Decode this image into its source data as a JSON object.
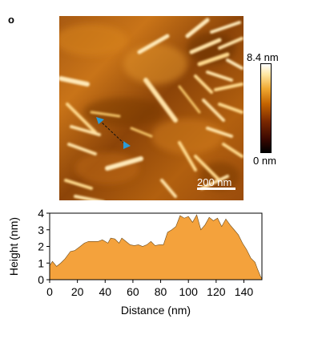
{
  "panel": {
    "label": "o"
  },
  "afm": {
    "scalebar_label": "200 nm",
    "colorbar_max": "8.4 nm",
    "colorbar_min": "0 nm",
    "colormap": [
      "#000000",
      "#3a0800",
      "#7a2800",
      "#c46400",
      "#f0a830",
      "#ffe6a0",
      "#ffffff"
    ],
    "marker_color": "#2b9bd6"
  },
  "chart_data": {
    "type": "area",
    "xlabel": "Distance (nm)",
    "ylabel": "Height (nm)",
    "xlim": [
      0,
      153
    ],
    "ylim": [
      0,
      4
    ],
    "xticks": [
      0,
      20,
      40,
      60,
      80,
      100,
      120,
      140
    ],
    "yticks": [
      0,
      1,
      2,
      3,
      4
    ],
    "fill_color": "#f4a23c",
    "grid": false,
    "x": [
      0,
      2,
      5,
      8,
      11,
      15,
      18,
      22,
      25,
      28,
      32,
      35,
      38,
      42,
      44,
      47,
      50,
      52,
      55,
      58,
      61,
      64,
      67,
      70,
      73,
      76,
      79,
      82,
      85,
      88,
      91,
      94,
      97,
      100,
      103,
      106,
      109,
      112,
      115,
      118,
      121,
      124,
      127,
      130,
      133,
      136,
      139,
      142,
      145,
      148,
      150,
      152,
      153
    ],
    "y": [
      0.85,
      1.1,
      0.8,
      1.0,
      1.25,
      1.7,
      1.75,
      2.0,
      2.2,
      2.3,
      2.3,
      2.3,
      2.4,
      2.2,
      2.5,
      2.45,
      2.2,
      2.5,
      2.3,
      2.1,
      2.05,
      2.1,
      2.0,
      2.1,
      2.3,
      2.05,
      2.1,
      2.1,
      2.85,
      3.0,
      3.2,
      3.85,
      3.7,
      3.8,
      3.45,
      3.9,
      3.0,
      3.3,
      3.75,
      3.55,
      3.7,
      3.2,
      3.65,
      3.3,
      3.0,
      2.7,
      2.2,
      1.8,
      1.3,
      1.05,
      0.6,
      0.2,
      0.05
    ]
  }
}
